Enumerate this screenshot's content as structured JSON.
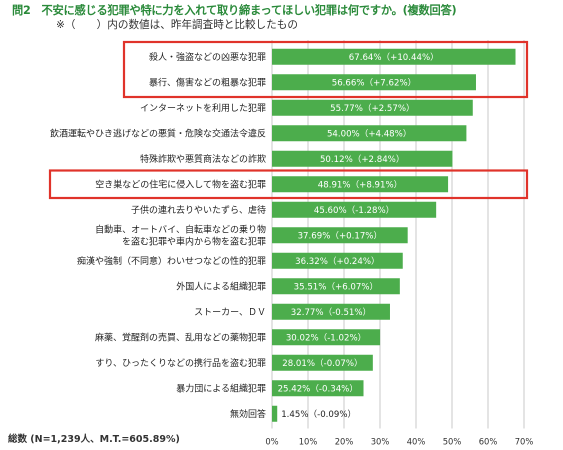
{
  "header": {
    "title": "問2　不安に感じる犯罪や特に力を入れて取り締まってほしい犯罪は何ですか。(複数回答)",
    "note": "※（　　）内の数値は、昨年調査時と比較したもの"
  },
  "footer": {
    "total": "総数 (N=1,239人、M.T.=605.89%)"
  },
  "colors": {
    "bar": "#4cad4c",
    "highlight": "#e0332a",
    "title": "#2a8a3a"
  },
  "chart_data": {
    "type": "bar",
    "orientation": "horizontal",
    "xlim": [
      0,
      70
    ],
    "ticks": [
      "0%",
      "10%",
      "20%",
      "30%",
      "40%",
      "50%",
      "60%",
      "70%"
    ],
    "grid": true,
    "categories": [
      "殺人・強盗などの凶悪な犯罪",
      "暴行、傷害などの粗暴な犯罪",
      "インターネットを利用した犯罪",
      "飲酒運転やひき逃げなどの悪質・危険な交通法令違反",
      "特殊詐欺や悪質商法などの詐欺",
      "空き巣などの住宅に侵入して物を盗む犯罪",
      "子供の連れ去りやいたずら、虐待",
      "自動車、オートバイ、自転車などの乗り物を盗む犯罪や車内から物を盗む犯罪",
      "痴漢や強制（不同意）わいせつなどの性的犯罪",
      "外国人による組織犯罪",
      "ストーカー、ＤＶ",
      "麻薬、覚醒剤の売買、乱用などの薬物犯罪",
      "すり、ひったくりなどの携行品を盗む犯罪",
      "暴力団による組織犯罪",
      "無効回答"
    ],
    "values": [
      67.64,
      56.66,
      55.77,
      54.0,
      50.12,
      48.91,
      45.6,
      37.69,
      36.32,
      35.51,
      32.77,
      30.02,
      28.01,
      25.42,
      1.45
    ],
    "labels": [
      "67.64%（+10.44%）",
      "56.66%（+7.62%）",
      "55.77%（+2.57%）",
      "54.00%（+4.48%）",
      "50.12%（+2.84%）",
      "48.91%（+8.91%）",
      "45.60%（-1.28%）",
      "37.69%（+0.17%）",
      "36.32%（+0.24%）",
      "35.51%（+6.07%）",
      "32.77%（-0.51%）",
      "30.02%（-1.02%）",
      "28.01%（-0.07%）",
      "25.42%（-0.34%）",
      "1.45%（-0.09%）"
    ],
    "highlighted": [
      0,
      1,
      5
    ]
  }
}
